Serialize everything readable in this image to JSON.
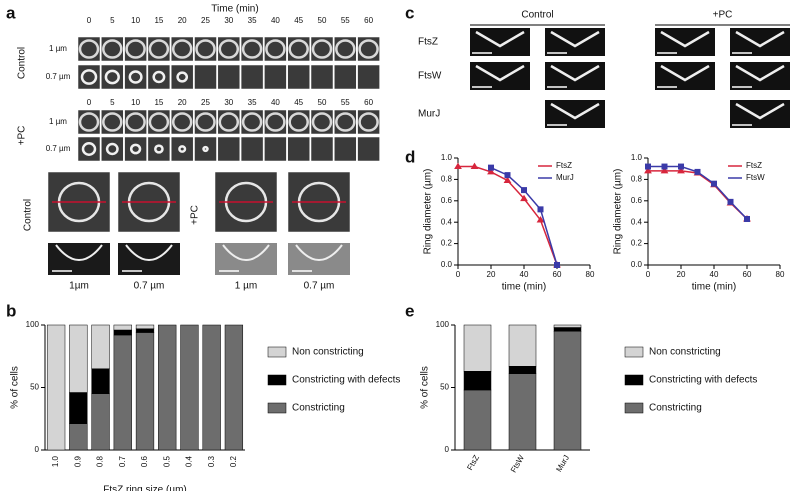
{
  "panel_labels": [
    "a",
    "b",
    "c",
    "d",
    "e"
  ],
  "panel_a": {
    "title": "Time (min)",
    "groups": [
      {
        "label": "Control",
        "times": [
          0,
          5,
          10,
          15,
          20,
          25,
          30,
          35,
          40,
          45,
          50,
          55,
          60
        ],
        "rows": [
          "1 µm",
          "0.7 µm"
        ]
      },
      {
        "label": "+PC",
        "times": [
          0,
          5,
          10,
          15,
          20,
          25,
          30,
          35,
          40,
          45,
          50,
          55,
          60
        ],
        "rows": [
          "1 µm",
          "0.7 µm"
        ]
      }
    ],
    "lower": [
      {
        "label": "Control",
        "scales": [
          "1µm",
          "0.7 µm"
        ]
      },
      {
        "label": "+PC",
        "scales": [
          "1 µm",
          "0.7 µm"
        ]
      }
    ]
  },
  "panel_c": {
    "columns": [
      "Control",
      "+PC"
    ],
    "rows": [
      "FtsZ",
      "FtsW",
      "MurJ"
    ]
  },
  "chart_data": [
    {
      "type": "bar",
      "stacked": true,
      "ylabel": "% of cells",
      "xlabel": "FtsZ ring size (µm)",
      "categories": [
        "1.0",
        "0.9",
        "0.8",
        "0.7",
        "0.6",
        "0.5",
        "0.4",
        "0.3",
        "0.2"
      ],
      "series": [
        {
          "name": "Constricting",
          "color": "#6d6d6d",
          "values": [
            0,
            21,
            45,
            92,
            94,
            100,
            100,
            100,
            100
          ]
        },
        {
          "name": "Constricting with defects",
          "color": "#000000",
          "values": [
            0,
            25,
            20,
            4,
            3,
            0,
            0,
            0,
            0
          ]
        },
        {
          "name": "Non constricting",
          "color": "#d4d4d4",
          "values": [
            100,
            54,
            35,
            4,
            3,
            0,
            0,
            0,
            0
          ]
        }
      ],
      "ylim": [
        0,
        100
      ],
      "yticks": [
        0,
        50,
        100
      ]
    },
    {
      "type": "line",
      "ylabel": "Ring diameter (µm)",
      "xlabel": "time (min)",
      "x": [
        0,
        10,
        20,
        30,
        40,
        50,
        60
      ],
      "series": [
        {
          "name": "FtsZ",
          "color": "#d7263d",
          "values": [
            0.92,
            0.92,
            0.87,
            0.79,
            0.62,
            0.42,
            0.0
          ]
        },
        {
          "name": "MurJ",
          "color": "#3a3aa8",
          "values": [
            null,
            null,
            0.91,
            0.84,
            0.7,
            0.52,
            0.0
          ]
        }
      ],
      "xlim": [
        0,
        80
      ],
      "xticks": [
        0,
        20,
        40,
        60,
        80
      ],
      "ylim": [
        0,
        1.0
      ],
      "yticks": [
        {
          "value": 0,
          "label": "0.0"
        },
        0.2,
        0.4,
        0.6,
        0.8,
        {
          "value": 1.0,
          "label": "1.0"
        }
      ]
    },
    {
      "type": "line",
      "ylabel": "Ring diameter (µm)",
      "xlabel": "time (min)",
      "x": [
        0,
        10,
        20,
        30,
        40,
        50,
        60
      ],
      "series": [
        {
          "name": "FtsZ",
          "color": "#d7263d",
          "values": [
            0.88,
            0.88,
            0.88,
            0.86,
            0.75,
            0.58,
            0.43
          ]
        },
        {
          "name": "FtsW",
          "color": "#3a3aa8",
          "values": [
            0.92,
            0.92,
            0.92,
            0.87,
            0.76,
            0.59,
            0.43
          ]
        }
      ],
      "xlim": [
        0,
        80
      ],
      "xticks": [
        0,
        20,
        40,
        60,
        80
      ],
      "ylim": [
        0,
        1.0
      ],
      "yticks": [
        {
          "value": 0,
          "label": "0.0"
        },
        0.2,
        0.4,
        0.6,
        0.8,
        {
          "value": 1.0,
          "label": "1.0"
        }
      ]
    },
    {
      "type": "bar",
      "stacked": true,
      "ylabel": "% of cells",
      "categories": [
        "FtsZ",
        "FtsW",
        "MurJ"
      ],
      "series": [
        {
          "name": "Constricting",
          "color": "#6d6d6d",
          "values": [
            48,
            61,
            95
          ]
        },
        {
          "name": "Constricting with defects",
          "color": "#000000",
          "values": [
            15,
            6,
            3
          ]
        },
        {
          "name": "Non constricting",
          "color": "#d4d4d4",
          "values": [
            37,
            33,
            2
          ]
        }
      ],
      "ylim": [
        0,
        100
      ],
      "yticks": [
        0,
        50,
        100
      ]
    }
  ]
}
